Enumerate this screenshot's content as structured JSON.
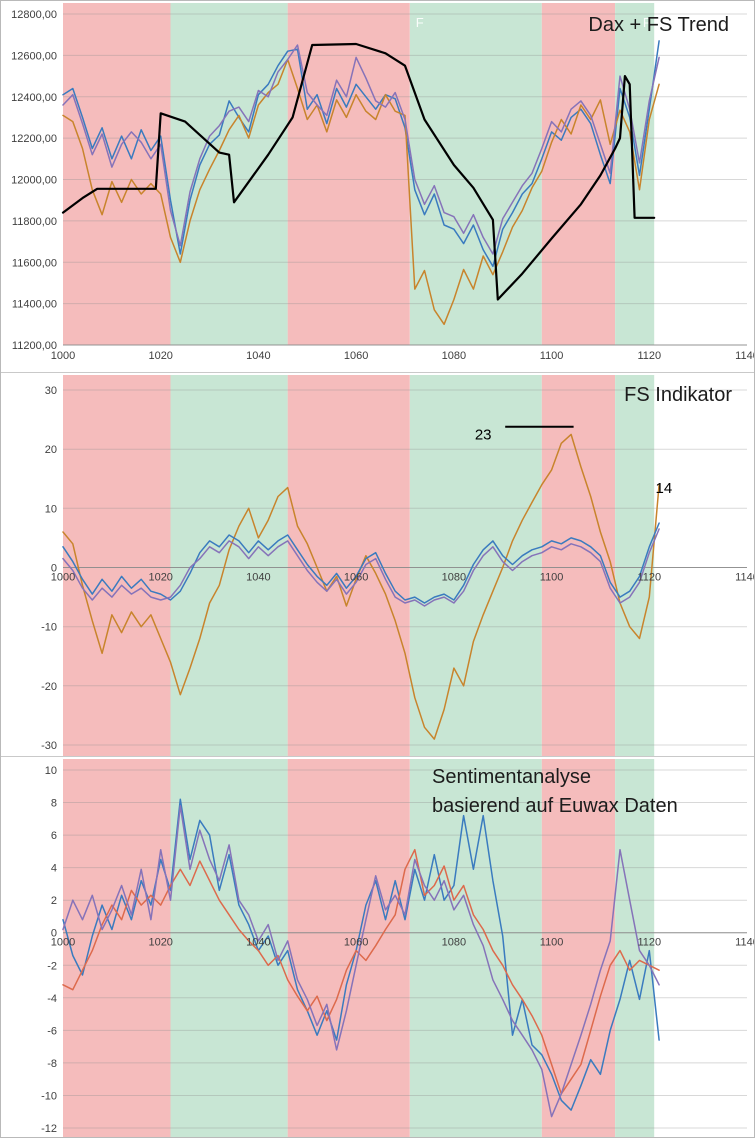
{
  "band_colors": {
    "red": "#f5bcbc",
    "green": "#c8e6d4"
  },
  "bands": [
    {
      "from": 1000,
      "to": 1022,
      "color": "red"
    },
    {
      "from": 1022,
      "to": 1046,
      "color": "green"
    },
    {
      "from": 1046,
      "to": 1071,
      "color": "red"
    },
    {
      "from": 1071,
      "to": 1098,
      "color": "green"
    },
    {
      "from": 1098,
      "to": 1113,
      "color": "red"
    },
    {
      "from": 1113,
      "to": 1121,
      "color": "green"
    }
  ],
  "chart_data": [
    {
      "id": "dax-fs-trend",
      "type": "line",
      "title": "Dax + FS Trend",
      "xlim": [
        1000,
        1140
      ],
      "ylim": [
        11200,
        12800
      ],
      "grid": "horizontal",
      "legend": "none",
      "x_ticks": [
        1000,
        1020,
        1040,
        1060,
        1080,
        1100,
        1120,
        1140
      ],
      "y_ticks": [
        12800,
        12600,
        12400,
        12200,
        12000,
        11800,
        11600,
        11400,
        11200
      ],
      "y_tick_labels": [
        "12800,00",
        "12600,00",
        "12400,00",
        "12200,00",
        "12000,00",
        "11800,00",
        "11600,00",
        "11400,00",
        "11200,00"
      ],
      "x_start": 1000,
      "x_step": 2,
      "series": [
        {
          "name": "blue",
          "color": "#3a7bbf",
          "width": 1.5,
          "values": [
            12410,
            12440,
            12300,
            12150,
            12250,
            12100,
            12210,
            12100,
            12240,
            12140,
            12210,
            11900,
            11640,
            11900,
            12070,
            12170,
            12215,
            12380,
            12300,
            12230,
            12410,
            12460,
            12550,
            12620,
            12630,
            12340,
            12410,
            12270,
            12440,
            12350,
            12460,
            12400,
            12340,
            12410,
            12390,
            12250,
            11950,
            11830,
            11930,
            11780,
            11760,
            11690,
            11780,
            11660,
            11580,
            11760,
            11840,
            11930,
            11980,
            12100,
            12230,
            12190,
            12300,
            12340,
            12270,
            12120,
            11980,
            12440,
            12300,
            12020,
            12340,
            12670
          ]
        },
        {
          "name": "orange",
          "color": "#c8842c",
          "width": 1.5,
          "values": [
            12310,
            12280,
            12150,
            11950,
            11830,
            11990,
            11890,
            12000,
            11930,
            11980,
            11930,
            11720,
            11600,
            11800,
            11950,
            12050,
            12140,
            12240,
            12310,
            12200,
            12360,
            12420,
            12460,
            12580,
            12440,
            12290,
            12360,
            12230,
            12385,
            12300,
            12410,
            12330,
            12290,
            12410,
            12330,
            12310,
            11470,
            11560,
            11370,
            11300,
            11420,
            11565,
            11470,
            11630,
            11540,
            11650,
            11770,
            11850,
            11960,
            12040,
            12180,
            12290,
            12220,
            12360,
            12290,
            12385,
            12170,
            12335,
            12230,
            11950,
            12290,
            12460
          ]
        },
        {
          "name": "purple",
          "color": "#8673b9",
          "width": 1.5,
          "values": [
            12360,
            12410,
            12270,
            12120,
            12220,
            12060,
            12170,
            12230,
            12180,
            12100,
            12170,
            11850,
            11680,
            11940,
            12100,
            12210,
            12260,
            12330,
            12350,
            12280,
            12430,
            12400,
            12520,
            12580,
            12650,
            12420,
            12360,
            12310,
            12480,
            12400,
            12590,
            12490,
            12380,
            12350,
            12420,
            12290,
            12000,
            11880,
            11970,
            11840,
            11820,
            11740,
            11830,
            11720,
            11640,
            11810,
            11890,
            11970,
            12030,
            12150,
            12280,
            12230,
            12340,
            12380,
            12310,
            12170,
            12030,
            12500,
            12340,
            12080,
            12380,
            12590
          ]
        },
        {
          "name": "fs-trend",
          "color": "#000000",
          "width": 2.2,
          "x": [
            1000,
            1004,
            1007,
            1019,
            1020,
            1025,
            1032,
            1034,
            1035,
            1042,
            1047,
            1051,
            1060,
            1066,
            1070,
            1074,
            1080,
            1084,
            1088,
            1089,
            1094,
            1100,
            1106,
            1110,
            1113,
            1114,
            1115,
            1116,
            1117,
            1121
          ],
          "values": [
            11840,
            11910,
            11955,
            11955,
            12320,
            12280,
            12130,
            12120,
            11890,
            12120,
            12300,
            12650,
            12655,
            12610,
            12550,
            12290,
            12070,
            11960,
            11805,
            11420,
            11545,
            11715,
            11880,
            12020,
            12150,
            12200,
            12500,
            12460,
            11815,
            11815
          ]
        }
      ],
      "annotations": [
        {
          "type": "text",
          "text": "F",
          "x": 1073,
          "y": 12758,
          "color": "rgba(255,255,255,0.9)",
          "size": 13
        },
        {
          "type": "text",
          "text": "F",
          "x": 1119.5,
          "y": 12758,
          "color": "rgba(255,255,255,0.9)",
          "size": 13
        }
      ]
    },
    {
      "id": "fs-indikator",
      "type": "line",
      "title": "FS Indikator",
      "xlim": [
        1000,
        1140
      ],
      "ylim": [
        -30,
        30
      ],
      "grid": "horizontal",
      "legend": "none",
      "x_ticks": [
        1000,
        1020,
        1040,
        1060,
        1080,
        1100,
        1120,
        1140
      ],
      "y_ticks": [
        30,
        20,
        10,
        0,
        -10,
        -20,
        -30
      ],
      "y_tick_labels": [
        "30",
        "20",
        "10",
        "0",
        "-10",
        "-20",
        "-30"
      ],
      "x_start": 1000,
      "x_step": 2,
      "series": [
        {
          "name": "orange",
          "color": "#c8842c",
          "width": 1.5,
          "values": [
            6,
            4,
            -3,
            -9,
            -14.5,
            -8,
            -11,
            -7.5,
            -10,
            -8,
            -12,
            -16,
            -21.5,
            -17,
            -12,
            -6,
            -3,
            3,
            7,
            10,
            5,
            8,
            12,
            13.5,
            7,
            4,
            0,
            -4,
            -1.5,
            -6.5,
            -2,
            2,
            -1,
            -4.5,
            -9,
            -14.5,
            -22,
            -27,
            -29,
            -24,
            -17,
            -20,
            -12.5,
            -8,
            -4,
            0,
            4.5,
            8,
            11,
            14,
            16.5,
            21,
            22.5,
            17,
            12,
            6,
            1,
            -6,
            -10,
            -12,
            -5,
            14
          ]
        },
        {
          "name": "blue",
          "color": "#3a7bbf",
          "width": 1.5,
          "values": [
            3.5,
            1,
            -2,
            -4.5,
            -2,
            -4,
            -1.5,
            -3.5,
            -2,
            -4,
            -4.5,
            -5.5,
            -4,
            -1,
            2.5,
            4.5,
            3.5,
            5.5,
            4.5,
            2.5,
            4.5,
            3,
            4.5,
            5.5,
            3,
            0.5,
            -1.5,
            -3,
            -1,
            -3.5,
            -1.5,
            1.5,
            2.5,
            -1,
            -4,
            -5.5,
            -5,
            -6,
            -5,
            -4.5,
            -5.5,
            -3,
            0.5,
            3,
            4.5,
            2,
            0.5,
            2,
            3,
            3.5,
            4.5,
            4,
            5,
            4.5,
            3.5,
            2,
            -2.5,
            -5,
            -4,
            -1.5,
            3.5,
            7.5
          ]
        },
        {
          "name": "purple",
          "color": "#8673b9",
          "width": 1.5,
          "values": [
            1.5,
            -0.5,
            -3.5,
            -5.5,
            -3.5,
            -5,
            -3,
            -4.5,
            -3.5,
            -5,
            -5.5,
            -5,
            -3,
            0,
            1.5,
            3.5,
            2.5,
            4.5,
            3.5,
            1.5,
            3.5,
            2,
            3.5,
            4.5,
            2,
            -0.5,
            -2.5,
            -4,
            -2,
            -4.5,
            -2.5,
            0.5,
            1.5,
            -2,
            -5,
            -6,
            -5.5,
            -6.5,
            -5.5,
            -5,
            -6,
            -4,
            -0.5,
            2,
            3.5,
            1,
            -0.5,
            1,
            2,
            2.5,
            3.5,
            3,
            4,
            3.5,
            2.5,
            1,
            -3.5,
            -6,
            -5,
            -2.5,
            2.5,
            6.5
          ]
        }
      ],
      "annotations": [
        {
          "type": "text",
          "text": "23",
          "x": 1086,
          "y": 22.5,
          "color": "#000000",
          "size": 15
        },
        {
          "type": "rule",
          "x1": 1090.5,
          "y1": 23.8,
          "x2": 1104.5,
          "y2": 23.8,
          "color": "#000000",
          "width": 2
        },
        {
          "type": "text",
          "text": "14",
          "x": 1123,
          "y": 13.5,
          "color": "#000000",
          "size": 15
        }
      ]
    },
    {
      "id": "sentimentanalyse",
      "type": "line",
      "title": "Sentimentanalyse basierend auf Euwax Daten",
      "title_lines": [
        "Sentimentanalyse",
        "basierend auf Euwax Daten"
      ],
      "xlim": [
        1000,
        1140
      ],
      "ylim": [
        -12,
        10
      ],
      "grid": "horizontal",
      "legend": "none",
      "x_ticks": [
        1000,
        1020,
        1040,
        1060,
        1080,
        1100,
        1120,
        1140
      ],
      "y_ticks": [
        10,
        8,
        6,
        4,
        2,
        0,
        -2,
        -4,
        -6,
        -8,
        -10,
        -12
      ],
      "y_tick_labels": [
        "10",
        "8",
        "6",
        "4",
        "2",
        "0",
        "-2",
        "-4",
        "-6",
        "-8",
        "-10",
        "-12"
      ],
      "x_start": 1000,
      "x_step": 2,
      "series": [
        {
          "name": "blue",
          "color": "#3a7bbf",
          "width": 1.5,
          "values": [
            0.8,
            -1.4,
            -2.6,
            -0.2,
            1.7,
            0.2,
            2.3,
            0.8,
            3.2,
            1.7,
            4.5,
            2.6,
            8.2,
            4.5,
            6.9,
            6,
            2.6,
            4.8,
            1.7,
            0.5,
            -1.1,
            -0.2,
            -2,
            -1.1,
            -3.5,
            -4.8,
            -6.3,
            -4.8,
            -6.6,
            -3.2,
            -1.1,
            1.7,
            3.2,
            0.8,
            3.2,
            0.8,
            3.9,
            2,
            4.8,
            2,
            2.9,
            7.2,
            3.9,
            7.2,
            3.2,
            -0.2,
            -6.3,
            -4.1,
            -6.9,
            -7.5,
            -8.7,
            -10.3,
            -10.9,
            -9.4,
            -7.8,
            -8.7,
            -6,
            -4.1,
            -1.7,
            -4.1,
            -1.1,
            -6.6
          ]
        },
        {
          "name": "red-orange",
          "color": "#dd6a4c",
          "width": 1.5,
          "values": [
            -3.2,
            -3.5,
            -2.3,
            -1.1,
            0.5,
            1.7,
            0.8,
            2.6,
            1.7,
            2.3,
            1.7,
            2.9,
            3.9,
            2.9,
            4.4,
            3.2,
            2,
            1.1,
            0.2,
            -0.5,
            -1.1,
            -2,
            -1.4,
            -2.9,
            -3.9,
            -4.8,
            -3.9,
            -5.4,
            -4.1,
            -2.3,
            -1.1,
            -1.7,
            -0.8,
            0.2,
            1.1,
            3.9,
            5.1,
            2.3,
            2.9,
            4.1,
            2,
            2.9,
            1.1,
            0.2,
            -1.1,
            -2,
            -3.2,
            -4.1,
            -5.1,
            -6.3,
            -8.1,
            -9.9,
            -9,
            -8.1,
            -6,
            -3.9,
            -2,
            -1.1,
            -2.3,
            -1.7,
            -2,
            -2.3
          ]
        },
        {
          "name": "purple",
          "color": "#8673b9",
          "width": 1.5,
          "values": [
            0.2,
            2,
            0.8,
            2.3,
            0.2,
            1.4,
            2.9,
            1.1,
            3.9,
            0.8,
            5.1,
            2,
            7.8,
            3.9,
            6.3,
            4.5,
            3.2,
            5.4,
            2,
            1.1,
            -0.5,
            0.5,
            -1.7,
            -0.5,
            -2.9,
            -4.1,
            -5.7,
            -4.4,
            -7.2,
            -4.8,
            -2,
            0.8,
            3.5,
            1.4,
            2.3,
            1.1,
            4.5,
            2.9,
            2,
            3.2,
            1.4,
            2.3,
            0.5,
            -0.8,
            -2.9,
            -4.1,
            -5.4,
            -6.3,
            -7.2,
            -8.4,
            -11.3,
            -9.9,
            -8.1,
            -6.3,
            -4.4,
            -2.3,
            -0.5,
            5.1,
            2,
            -1.1,
            -2,
            -3.2
          ]
        }
      ],
      "annotations": []
    }
  ]
}
